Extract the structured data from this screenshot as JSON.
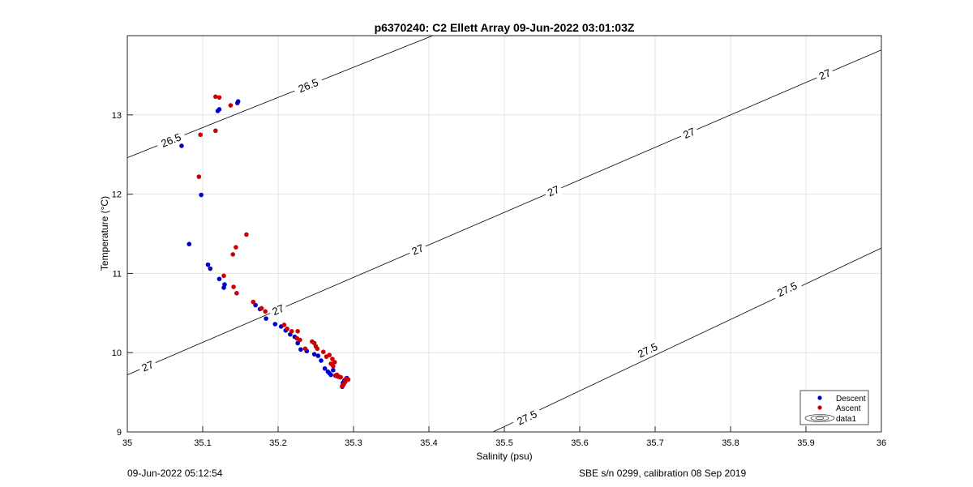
{
  "chart_data": {
    "type": "scatter",
    "title": "p6370240: C2 Ellett Array 09-Jun-2022 03:01:03Z",
    "xlabel": "Salinity (psu)",
    "ylabel": "Temperature (°C)",
    "xlim": [
      35,
      36
    ],
    "ylim": [
      9,
      14
    ],
    "grid": true,
    "legend_position": "bottom-right",
    "x_ticks": [
      "35",
      "35.1",
      "35.2",
      "35.3",
      "35.4",
      "35.5",
      "35.6",
      "35.7",
      "35.8",
      "35.9",
      "36"
    ],
    "y_ticks": [
      "9",
      "10",
      "11",
      "12",
      "13"
    ],
    "series": [
      {
        "name": "Descent",
        "color": "#0000cc",
        "points": [
          [
            35.072,
            12.61
          ],
          [
            35.098,
            11.99
          ],
          [
            35.082,
            11.37
          ],
          [
            35.12,
            13.05
          ],
          [
            35.122,
            13.07
          ],
          [
            35.146,
            13.15
          ],
          [
            35.147,
            13.17
          ],
          [
            35.107,
            11.11
          ],
          [
            35.11,
            11.06
          ],
          [
            35.122,
            10.93
          ],
          [
            35.128,
            10.82
          ],
          [
            35.129,
            10.86
          ],
          [
            35.17,
            10.6
          ],
          [
            35.176,
            10.55
          ],
          [
            35.184,
            10.43
          ],
          [
            35.196,
            10.36
          ],
          [
            35.204,
            10.33
          ],
          [
            35.21,
            10.28
          ],
          [
            35.216,
            10.23
          ],
          [
            35.222,
            10.2
          ],
          [
            35.226,
            10.12
          ],
          [
            35.23,
            10.04
          ],
          [
            35.238,
            10.02
          ],
          [
            35.248,
            9.98
          ],
          [
            35.253,
            9.96
          ],
          [
            35.257,
            9.9
          ],
          [
            35.262,
            9.8
          ],
          [
            35.266,
            9.76
          ],
          [
            35.268,
            9.74
          ],
          [
            35.27,
            9.72
          ],
          [
            35.273,
            9.78
          ],
          [
            35.276,
            9.71
          ],
          [
            35.279,
            9.7
          ],
          [
            35.282,
            9.69
          ],
          [
            35.285,
            9.57
          ],
          [
            35.286,
            9.62
          ],
          [
            35.288,
            9.65
          ],
          [
            35.291,
            9.68
          ]
        ]
      },
      {
        "name": "Ascent",
        "color": "#cc0000",
        "points": [
          [
            35.117,
            13.23
          ],
          [
            35.122,
            13.22
          ],
          [
            35.137,
            13.12
          ],
          [
            35.117,
            12.8
          ],
          [
            35.097,
            12.75
          ],
          [
            35.095,
            12.22
          ],
          [
            35.158,
            11.49
          ],
          [
            35.144,
            11.33
          ],
          [
            35.14,
            11.24
          ],
          [
            35.128,
            10.97
          ],
          [
            35.141,
            10.83
          ],
          [
            35.145,
            10.75
          ],
          [
            35.167,
            10.64
          ],
          [
            35.178,
            10.56
          ],
          [
            35.183,
            10.52
          ],
          [
            35.208,
            10.35
          ],
          [
            35.212,
            10.3
          ],
          [
            35.218,
            10.27
          ],
          [
            35.225,
            10.18
          ],
          [
            35.226,
            10.27
          ],
          [
            35.229,
            10.16
          ],
          [
            35.236,
            10.05
          ],
          [
            35.245,
            10.14
          ],
          [
            35.248,
            10.12
          ],
          [
            35.25,
            10.08
          ],
          [
            35.252,
            10.05
          ],
          [
            35.26,
            10.01
          ],
          [
            35.264,
            9.95
          ],
          [
            35.268,
            9.97
          ],
          [
            35.27,
            9.86
          ],
          [
            35.272,
            9.92
          ],
          [
            35.273,
            9.83
          ],
          [
            35.275,
            9.88
          ],
          [
            35.276,
            9.71
          ],
          [
            35.278,
            9.72
          ],
          [
            35.28,
            9.7
          ],
          [
            35.283,
            9.69
          ],
          [
            35.285,
            9.58
          ],
          [
            35.287,
            9.6
          ],
          [
            35.289,
            9.63
          ],
          [
            35.29,
            9.67
          ],
          [
            35.293,
            9.66
          ]
        ]
      },
      {
        "name": "data1",
        "color": "#000000"
      }
    ],
    "contours": [
      {
        "label": "26.5",
        "points": [
          [
            35.0,
            12.46
          ],
          [
            35.405,
            14.0
          ]
        ],
        "labels_at": [
          [
            35.058,
            12.68
          ],
          [
            35.24,
            13.37
          ]
        ]
      },
      {
        "label": "27",
        "points": [
          [
            35.0,
            9.72
          ],
          [
            36.0,
            13.82
          ]
        ],
        "labels_at": [
          [
            35.027,
            9.83
          ],
          [
            35.2,
            10.54
          ],
          [
            35.385,
            11.3
          ],
          [
            35.565,
            12.04
          ],
          [
            35.745,
            12.77
          ],
          [
            35.925,
            13.51
          ]
        ]
      },
      {
        "label": "27.5",
        "points": [
          [
            35.485,
            9.0
          ],
          [
            36.0,
            11.32
          ]
        ],
        "labels_at": [
          [
            35.53,
            9.18
          ],
          [
            35.69,
            10.03
          ],
          [
            35.875,
            10.8
          ]
        ]
      }
    ]
  },
  "footer": {
    "timestamp": "09-Jun-2022 05:12:54",
    "calibration": "SBE s/n 0299, calibration 08 Sep 2019"
  }
}
